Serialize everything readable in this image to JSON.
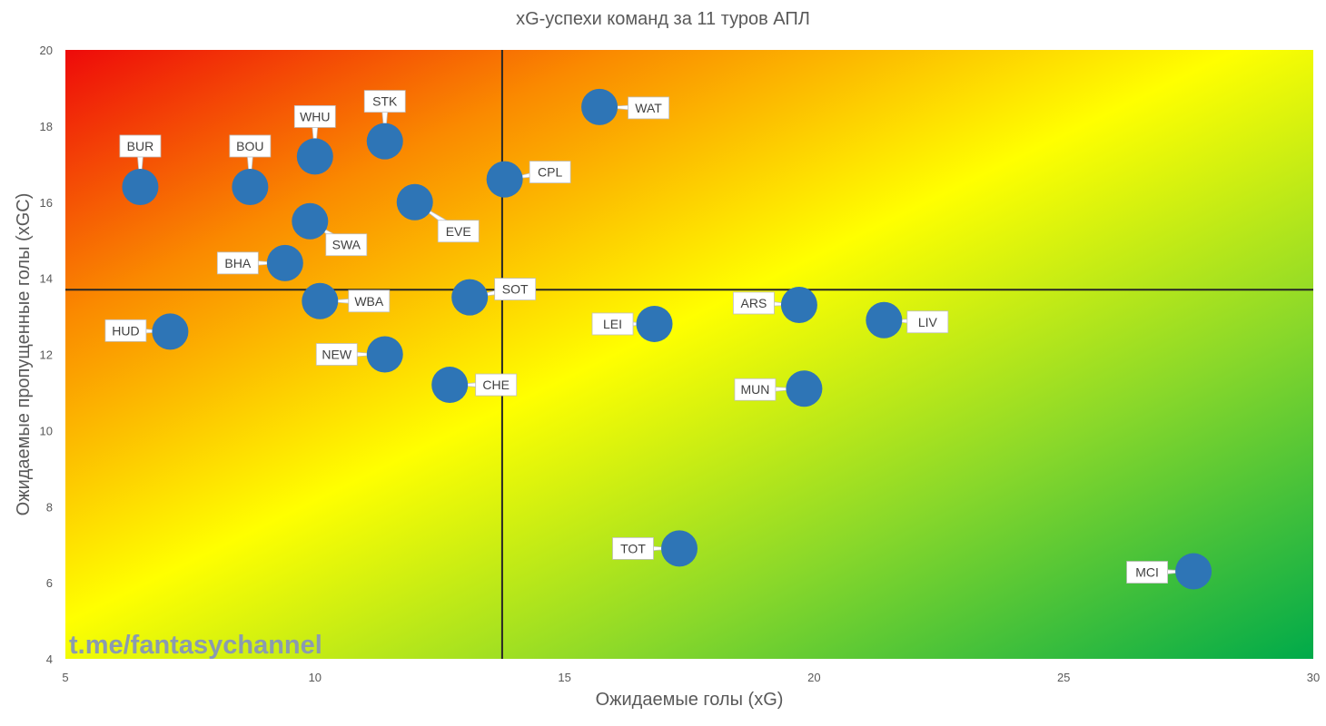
{
  "chart_data": {
    "type": "scatter",
    "title": "xG-успехи команд за 11 туров АПЛ",
    "xlabel": "Ожидаемые голы (xG)",
    "ylabel": "Ожидаемые пропущенные голы (xGC)",
    "xlim": [
      5,
      30
    ],
    "ylim": [
      4,
      20
    ],
    "xticks": [
      5,
      10,
      15,
      20,
      25,
      30
    ],
    "yticks": [
      4,
      6,
      8,
      10,
      12,
      14,
      16,
      18,
      20
    ],
    "grid": false,
    "reference_lines": {
      "x": 13.75,
      "y": 13.7
    },
    "background": "diagonal gradient red-orange-yellow-green",
    "marker_color": "#2e75b6",
    "watermark": "t.me/fantasychannel",
    "points": [
      {
        "label": "BUR",
        "x": 6.5,
        "y": 16.4
      },
      {
        "label": "BOU",
        "x": 8.7,
        "y": 16.4
      },
      {
        "label": "WHU",
        "x": 10.0,
        "y": 17.2
      },
      {
        "label": "STK",
        "x": 11.4,
        "y": 17.6
      },
      {
        "label": "WAT",
        "x": 15.7,
        "y": 18.5
      },
      {
        "label": "CPL",
        "x": 13.8,
        "y": 16.6
      },
      {
        "label": "EVE",
        "x": 12.0,
        "y": 16.0
      },
      {
        "label": "SWA",
        "x": 9.9,
        "y": 15.5
      },
      {
        "label": "BHA",
        "x": 9.4,
        "y": 14.4
      },
      {
        "label": "WBA",
        "x": 10.1,
        "y": 13.4
      },
      {
        "label": "SOT",
        "x": 13.1,
        "y": 13.5
      },
      {
        "label": "HUD",
        "x": 7.1,
        "y": 12.6
      },
      {
        "label": "NEW",
        "x": 11.4,
        "y": 12.0
      },
      {
        "label": "CHE",
        "x": 12.7,
        "y": 11.2
      },
      {
        "label": "LEI",
        "x": 16.8,
        "y": 12.8
      },
      {
        "label": "ARS",
        "x": 19.7,
        "y": 13.3
      },
      {
        "label": "LIV",
        "x": 21.4,
        "y": 12.9
      },
      {
        "label": "MUN",
        "x": 19.8,
        "y": 11.1
      },
      {
        "label": "TOT",
        "x": 17.3,
        "y": 6.9
      },
      {
        "label": "MCI",
        "x": 27.6,
        "y": 6.3
      }
    ]
  }
}
